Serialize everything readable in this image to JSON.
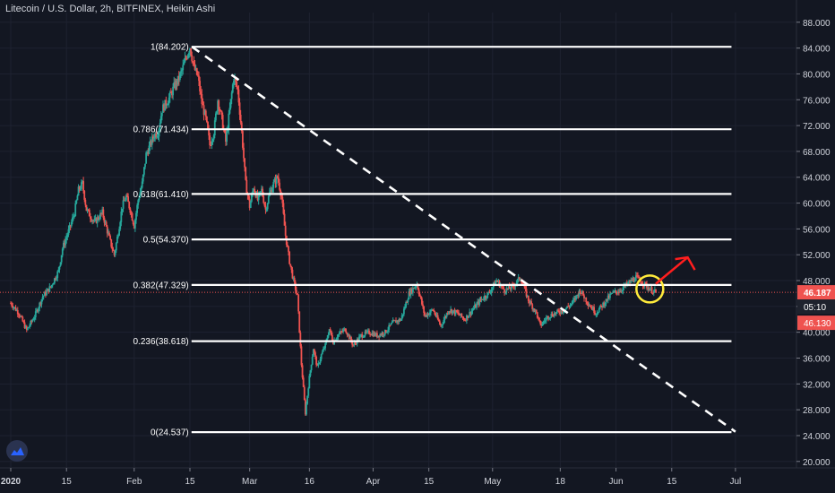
{
  "header": {
    "title": "Litecoin / U.S. Dollar, 2h, BITFINEX, Heikin Ashi"
  },
  "colors": {
    "background": "#131722",
    "text": "#d1d4dc",
    "bull": "#26a69a",
    "bear": "#ef5350",
    "fib_line": "#ffffff",
    "trend_line": "#ffffff",
    "last_price_line": "#ef5350",
    "annotation_circle": "#ffeb3b",
    "annotation_arrow": "#ff1e1e",
    "gridline": "#1e2230"
  },
  "icons": {
    "brand": "tradingview-logo-icon"
  },
  "chart_data": {
    "type": "candlestick",
    "title": "Litecoin / U.S. Dollar, 2h, BITFINEX, Heikin Ashi",
    "y_axis": {
      "ylim": [
        19.0,
        89.5
      ],
      "ticks": [
        20,
        24,
        28,
        32,
        36,
        40,
        44,
        48,
        52,
        56,
        60,
        64,
        68,
        72,
        76,
        80,
        84,
        88
      ],
      "tick_labels": [
        "20.000",
        "24.000",
        "28.000",
        "32.000",
        "36.000",
        "40.000",
        "44.000",
        "48.000",
        "52.000",
        "56.000",
        "60.000",
        "64.000",
        "68.000",
        "72.000",
        "76.000",
        "80.000",
        "84.000",
        "88.000"
      ],
      "last_price_labels": [
        "46.187",
        "05:10",
        "46.130"
      ]
    },
    "x_axis": {
      "tick_labels": [
        "2020",
        "15",
        "Feb",
        "15",
        "Mar",
        "16",
        "Apr",
        "15",
        "May",
        "18",
        "Jun",
        "15",
        "Jul"
      ],
      "tick_days": [
        0,
        14,
        31,
        45,
        60,
        75,
        91,
        105,
        121,
        138,
        152,
        166,
        182
      ],
      "xlim": [
        0,
        195
      ]
    },
    "fibonacci": [
      {
        "label": "1(84.202)",
        "value": 84.202
      },
      {
        "label": "0.786(71.434)",
        "value": 71.434
      },
      {
        "label": "0.618(61.410)",
        "value": 61.41
      },
      {
        "label": "0.5(54.370)",
        "value": 54.37
      },
      {
        "label": "0.382(47.329)",
        "value": 47.329
      },
      {
        "label": "0.236(38.618)",
        "value": 38.618
      },
      {
        "label": "0(24.537)",
        "value": 24.537
      }
    ],
    "fib_x_range": [
      45.4,
      181
    ],
    "trendline": {
      "x": [
        45.5,
        182
      ],
      "y": [
        84.2,
        24.6
      ]
    },
    "price_path": [
      [
        0,
        44.5
      ],
      [
        2,
        43.0
      ],
      [
        4,
        40.3
      ],
      [
        6,
        42.5
      ],
      [
        8,
        45.5
      ],
      [
        10,
        47.0
      ],
      [
        12,
        49.5
      ],
      [
        13,
        53.0
      ],
      [
        15,
        56.5
      ],
      [
        16,
        58.5
      ],
      [
        17,
        62.0
      ],
      [
        18,
        63.0
      ],
      [
        19,
        59.0
      ],
      [
        21,
        57.0
      ],
      [
        23,
        58.5
      ],
      [
        25,
        54.0
      ],
      [
        26,
        52.0
      ],
      [
        27,
        55.5
      ],
      [
        28,
        59.5
      ],
      [
        29,
        61.0
      ],
      [
        30,
        59.0
      ],
      [
        31,
        56.5
      ],
      [
        32,
        60.5
      ],
      [
        33,
        63.0
      ],
      [
        34,
        67.5
      ],
      [
        36,
        70.5
      ],
      [
        37,
        71.0
      ],
      [
        38,
        74.5
      ],
      [
        40,
        76.5
      ],
      [
        41,
        78.0
      ],
      [
        42,
        79.0
      ],
      [
        43,
        80.5
      ],
      [
        44,
        82.5
      ],
      [
        45,
        84.2
      ],
      [
        46,
        81.0
      ],
      [
        47,
        79.5
      ],
      [
        48,
        75.5
      ],
      [
        49,
        73.0
      ],
      [
        50,
        69.0
      ],
      [
        51,
        71.0
      ],
      [
        52,
        76.0
      ],
      [
        53,
        73.0
      ],
      [
        54,
        69.5
      ],
      [
        55,
        74.5
      ],
      [
        56,
        79.5
      ],
      [
        57,
        77.5
      ],
      [
        58,
        71.0
      ],
      [
        59,
        63.0
      ],
      [
        60,
        59.5
      ],
      [
        61,
        62.5
      ],
      [
        62,
        60.5
      ],
      [
        63,
        62.0
      ],
      [
        64,
        59.0
      ],
      [
        65,
        61.5
      ],
      [
        66,
        63.0
      ],
      [
        67,
        64.0
      ],
      [
        68,
        61.0
      ],
      [
        69,
        55.0
      ],
      [
        70,
        51.0
      ],
      [
        71,
        48.0
      ],
      [
        72,
        45.5
      ],
      [
        73,
        35.0
      ],
      [
        74,
        27.5
      ],
      [
        75,
        33.0
      ],
      [
        76,
        37.5
      ],
      [
        77,
        34.5
      ],
      [
        78,
        36.5
      ],
      [
        79,
        38.0
      ],
      [
        80,
        40.5
      ],
      [
        81,
        38.5
      ],
      [
        82,
        39.5
      ],
      [
        84,
        40.5
      ],
      [
        86,
        38.0
      ],
      [
        88,
        39.5
      ],
      [
        90,
        40.0
      ],
      [
        92,
        39.5
      ],
      [
        94,
        40.0
      ],
      [
        96,
        41.5
      ],
      [
        98,
        42.0
      ],
      [
        100,
        46.0
      ],
      [
        102,
        47.5
      ],
      [
        103,
        45.0
      ],
      [
        104,
        42.5
      ],
      [
        106,
        43.5
      ],
      [
        108,
        41.0
      ],
      [
        110,
        43.5
      ],
      [
        112,
        43.0
      ],
      [
        114,
        42.0
      ],
      [
        116,
        43.5
      ],
      [
        118,
        45.0
      ],
      [
        120,
        46.0
      ],
      [
        122,
        48.0
      ],
      [
        124,
        46.5
      ],
      [
        126,
        47.0
      ],
      [
        128,
        48.5
      ],
      [
        130,
        45.0
      ],
      [
        132,
        43.0
      ],
      [
        133,
        41.0
      ],
      [
        135,
        42.5
      ],
      [
        137,
        43.0
      ],
      [
        139,
        43.5
      ],
      [
        141,
        44.5
      ],
      [
        143,
        46.5
      ],
      [
        145,
        44.5
      ],
      [
        147,
        43.0
      ],
      [
        149,
        44.5
      ],
      [
        151,
        46.0
      ],
      [
        153,
        46.5
      ],
      [
        155,
        47.5
      ],
      [
        157,
        48.5
      ],
      [
        159,
        47.5
      ],
      [
        161,
        46.5
      ],
      [
        162,
        46.13
      ]
    ],
    "last_price": 46.187,
    "annotation_circle": {
      "x": 160.5,
      "y": 46.7
    },
    "annotation_arrow": {
      "from": [
        162,
        47.5
      ],
      "to": [
        170,
        51.6
      ]
    }
  }
}
